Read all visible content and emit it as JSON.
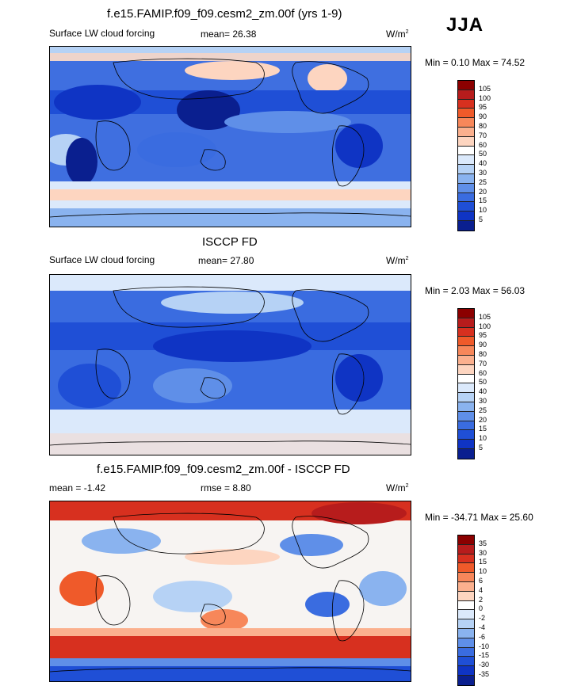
{
  "season": "JJA",
  "panels": [
    {
      "title": "f.e15.FAMIP.f09_f09.cesm2_zm.00f (yrs 1-9)",
      "subtitle": "Surface LW cloud forcing",
      "stat1": "mean=  26.38",
      "stat2": "",
      "units": "W/m",
      "units_sup": "2",
      "minmax": "Min =   0.10 Max =  74.52",
      "colorbar_labels": [
        "105",
        "100",
        "95",
        "90",
        "80",
        "70",
        "60",
        "50",
        "40",
        "30",
        "25",
        "20",
        "15",
        "10",
        "5"
      ],
      "colorbar_colors": [
        "#8b0000",
        "#b71c1c",
        "#d7301f",
        "#ef5a2a",
        "#f7875a",
        "#fbb08e",
        "#fdd5c0",
        "#ffffff",
        "#dbe9fb",
        "#b6d2f5",
        "#8ab3ef",
        "#5f8fe8",
        "#3a6ce0",
        "#1f4fd6",
        "#0f34c4",
        "#0a1f8f"
      ]
    },
    {
      "title": "ISCCP FD",
      "subtitle": "Surface LW cloud forcing",
      "stat1": "mean=  27.80",
      "stat2": "",
      "units": "W/m",
      "units_sup": "2",
      "minmax": "Min =   2.03 Max =  56.03",
      "colorbar_labels": [
        "105",
        "100",
        "95",
        "90",
        "80",
        "70",
        "60",
        "50",
        "40",
        "30",
        "25",
        "20",
        "15",
        "10",
        "5"
      ],
      "colorbar_colors": [
        "#8b0000",
        "#b71c1c",
        "#d7301f",
        "#ef5a2a",
        "#f7875a",
        "#fbb08e",
        "#fdd5c0",
        "#ffffff",
        "#dbe9fb",
        "#b6d2f5",
        "#8ab3ef",
        "#5f8fe8",
        "#3a6ce0",
        "#1f4fd6",
        "#0f34c4",
        "#0a1f8f"
      ]
    },
    {
      "title": "f.e15.FAMIP.f09_f09.cesm2_zm.00f - ISCCP FD",
      "subtitle": "mean =  -1.42",
      "stat1": "rmse =   8.80",
      "stat2": "",
      "units": "W/m",
      "units_sup": "2",
      "minmax": "Min = -34.71 Max =  25.60",
      "colorbar_labels": [
        "35",
        "30",
        "15",
        "10",
        "6",
        "4",
        "2",
        "0",
        "-2",
        "-4",
        "-6",
        "-10",
        "-15",
        "-30",
        "-35"
      ],
      "colorbar_colors": [
        "#8b0000",
        "#b71c1c",
        "#d7301f",
        "#ef5a2a",
        "#f7875a",
        "#fbb08e",
        "#fdd5c0",
        "#ffffff",
        "#dbe9fb",
        "#b6d2f5",
        "#8ab3ef",
        "#5f8fe8",
        "#3a6ce0",
        "#1f4fd6",
        "#0f34c4",
        "#0a1f8f"
      ]
    }
  ],
  "colors": {
    "map_base_1": "#3f6fe0",
    "map_base_2": "#3a6ce0",
    "map_base_3": "#f7f4f2"
  }
}
